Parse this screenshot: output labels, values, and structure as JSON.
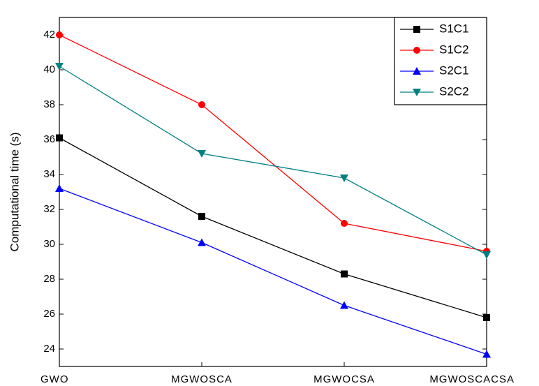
{
  "chart_data": {
    "type": "line",
    "y_label": "Computational time (s)",
    "categories": [
      "GWO",
      "MGWOSCA",
      "MGWOCSA",
      "MGWOSCACSA"
    ],
    "series": [
      {
        "name": "S1C1",
        "color": "#000000",
        "marker": "square",
        "values": [
          36.1,
          31.6,
          28.3,
          25.8
        ]
      },
      {
        "name": "S1C2",
        "color": "#ff0000",
        "marker": "circle",
        "values": [
          42.0,
          38.0,
          31.2,
          29.6
        ]
      },
      {
        "name": "S2C1",
        "color": "#0000ff",
        "marker": "triangle-up",
        "values": [
          33.2,
          30.1,
          26.5,
          23.7
        ]
      },
      {
        "name": "S2C2",
        "color": "#008080",
        "marker": "triangle-down",
        "values": [
          40.2,
          35.2,
          33.8,
          29.4
        ]
      }
    ],
    "ylim": [
      23,
      43
    ],
    "yticks": [
      24,
      26,
      28,
      30,
      32,
      34,
      36,
      38,
      40,
      42
    ],
    "grid": false,
    "legend": "upper right"
  }
}
